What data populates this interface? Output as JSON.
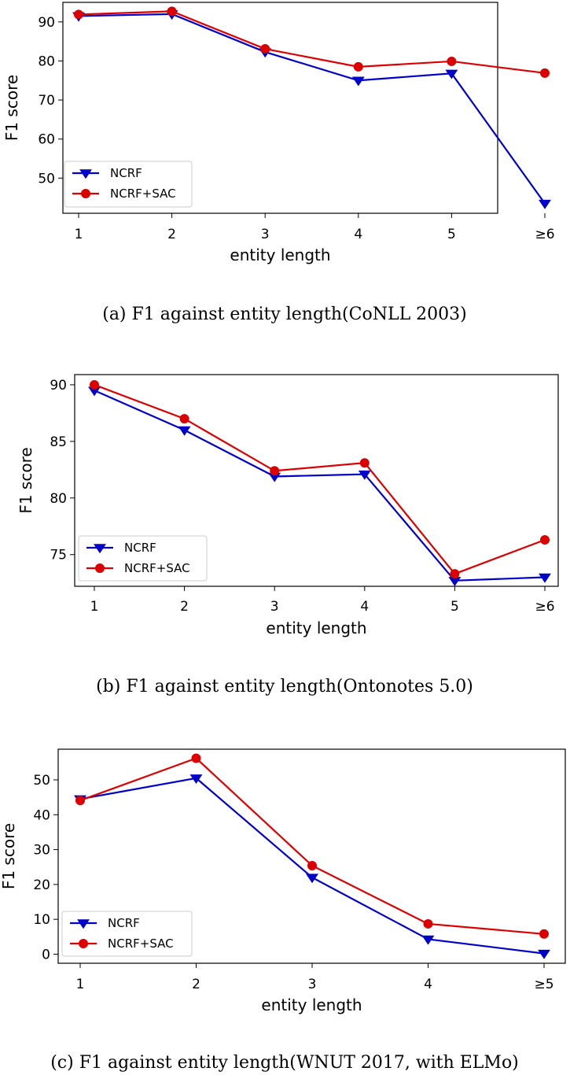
{
  "chart_data": [
    {
      "type": "line",
      "id": "a",
      "categories": [
        "1",
        "2",
        "3",
        "4",
        "5",
        "≥6"
      ],
      "series": [
        {
          "name": "NCRF",
          "color": "#0000cc",
          "marker": "triangle-down",
          "values": [
            91.5,
            92.0,
            82.3,
            75.0,
            76.8,
            43.5
          ]
        },
        {
          "name": "NCRF+SAC",
          "color": "#dd0000",
          "marker": "circle",
          "values": [
            91.9,
            92.7,
            83.1,
            78.5,
            79.9,
            76.9
          ]
        }
      ],
      "xlabel": "entity length",
      "ylabel": "F1 score",
      "ylim": [
        41,
        95
      ],
      "yticks": [
        50,
        60,
        70,
        80,
        90
      ],
      "legend": "lower-left",
      "caption": "(a)  F1 against entity length(CoNLL 2003)"
    },
    {
      "type": "line",
      "id": "b",
      "categories": [
        "1",
        "2",
        "3",
        "4",
        "5",
        "≥6"
      ],
      "series": [
        {
          "name": "NCRF",
          "color": "#0000cc",
          "marker": "triangle-down",
          "values": [
            89.5,
            86.0,
            81.9,
            82.1,
            72.7,
            73.0
          ]
        },
        {
          "name": "NCRF+SAC",
          "color": "#dd0000",
          "marker": "circle",
          "values": [
            90.0,
            87.0,
            82.4,
            83.1,
            73.3,
            76.3
          ]
        }
      ],
      "xlabel": "entity length",
      "ylabel": "F1 score",
      "ylim": [
        72.2,
        90.9
      ],
      "yticks": [
        75,
        80,
        85,
        90
      ],
      "legend": "lower-left",
      "caption": "(b)  F1 against entity length(Ontonotes 5.0)"
    },
    {
      "type": "line",
      "id": "c",
      "categories": [
        "1",
        "2",
        "3",
        "4",
        "≥5"
      ],
      "series": [
        {
          "name": "NCRF",
          "color": "#0000cc",
          "marker": "triangle-down",
          "values": [
            44.5,
            50.5,
            22.0,
            4.3,
            0.2
          ]
        },
        {
          "name": "NCRF+SAC",
          "color": "#dd0000",
          "marker": "circle",
          "values": [
            44.1,
            56.2,
            25.4,
            8.7,
            5.8
          ]
        }
      ],
      "xlabel": "entity length",
      "ylabel": "F1 score",
      "ylim": [
        -2.6,
        58.8
      ],
      "yticks": [
        0,
        10,
        20,
        30,
        40,
        50
      ],
      "legend": "lower-left",
      "caption": "(c)  F1 against entity length(WNUT 2017, with ELMo)"
    }
  ]
}
